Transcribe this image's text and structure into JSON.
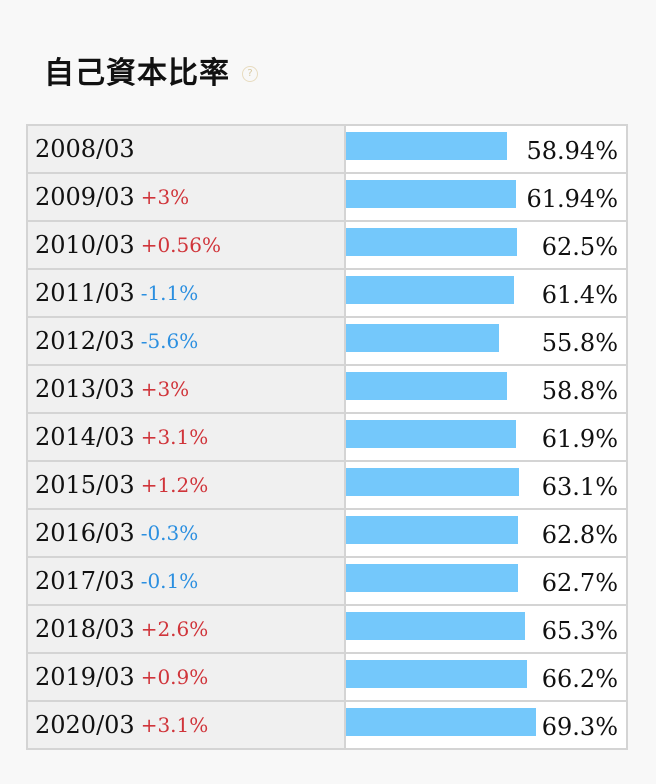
{
  "header": {
    "title": "自己資本比率",
    "help_icon": "question-circle-icon",
    "help_icon_glyph": "?"
  },
  "colors": {
    "bar": "#74c8fb",
    "increase": "#d0343a",
    "decrease": "#2b8fe0"
  },
  "chart_data": {
    "type": "bar",
    "title": "自己資本比率",
    "orientation": "horizontal",
    "categories": [
      "2008/03",
      "2009/03",
      "2010/03",
      "2011/03",
      "2012/03",
      "2013/03",
      "2014/03",
      "2015/03",
      "2016/03",
      "2017/03",
      "2018/03",
      "2019/03",
      "2020/03"
    ],
    "values": [
      58.94,
      61.94,
      62.5,
      61.4,
      55.8,
      58.8,
      61.9,
      63.1,
      62.8,
      62.7,
      65.3,
      66.2,
      69.3
    ],
    "value_labels": [
      "58.94%",
      "61.94%",
      "62.5%",
      "61.4%",
      "55.8%",
      "58.8%",
      "61.9%",
      "63.1%",
      "62.8%",
      "62.7%",
      "65.3%",
      "66.2%",
      "69.3%"
    ],
    "changes": [
      "",
      "+3%",
      "+0.56%",
      "-1.1%",
      "-5.6%",
      "+3%",
      "+3.1%",
      "+1.2%",
      "-0.3%",
      "-0.1%",
      "+2.6%",
      "+0.9%",
      "+3.1%"
    ],
    "xlim": [
      0,
      100
    ],
    "grid": false,
    "legend": "none"
  }
}
